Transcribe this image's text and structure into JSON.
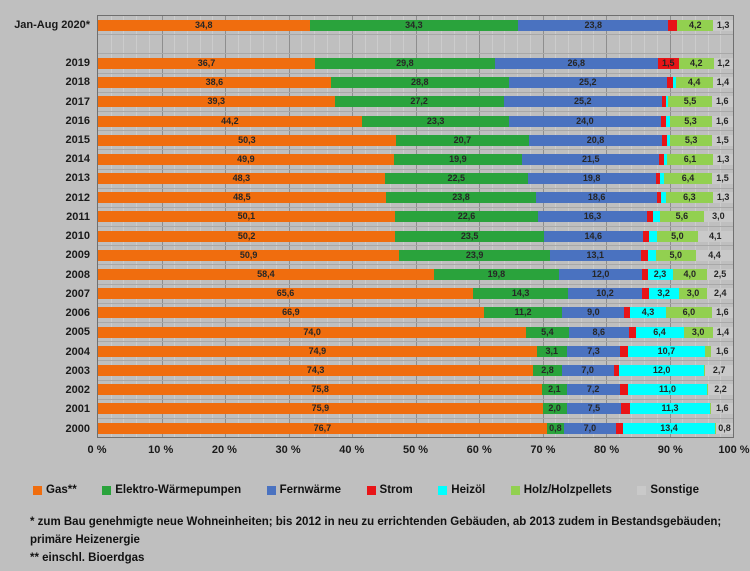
{
  "chart_data": {
    "type": "bar",
    "variant": "horizontal-stacked-100",
    "title": "",
    "xlabel": "",
    "ylabel": "",
    "xlim": [
      0,
      100
    ],
    "grid": {
      "minor_step_pct": 2,
      "major_step_pct": 10,
      "horizontal_row_lines": true
    },
    "legend_position": "bottom",
    "x_ticks": [
      "0 %",
      "10 %",
      "20 %",
      "30 %",
      "40 %",
      "50 %",
      "60 %",
      "70 %",
      "80 %",
      "90 %",
      "100 %"
    ],
    "series": [
      {
        "name": "Gas**",
        "color": "#f06d0e"
      },
      {
        "name": "Elektro-Wärmepumpen",
        "color": "#2aa33c"
      },
      {
        "name": "Fernwärme",
        "color": "#4a72c0"
      },
      {
        "name": "Strom",
        "color": "#e81417"
      },
      {
        "name": "Heizöl",
        "color": "#00ffff"
      },
      {
        "name": "Holz/Holzpellets",
        "color": "#92d050"
      },
      {
        "name": "Sonstige",
        "color": "#c9c9c9"
      }
    ],
    "spacer_after_row": 0,
    "rows": [
      {
        "year": "Jan-Aug 2020*",
        "values": [
          34.8,
          34.3,
          23.8,
          1.5,
          0.1,
          4.2,
          1.3
        ],
        "labels": [
          "34,8",
          "34,3",
          "23,8",
          "",
          "",
          "4,2",
          "1,3"
        ]
      },
      {
        "year": "2019",
        "values": [
          36.7,
          29.8,
          26.8,
          1.5,
          0.0,
          4.2,
          1.2
        ],
        "labels": [
          "36,7",
          "29,8",
          "26,8",
          "1,5",
          "",
          "4,2",
          "1,2"
        ]
      },
      {
        "year": "2018",
        "values": [
          38.6,
          28.8,
          25.2,
          1.2,
          0.4,
          4.4,
          1.4
        ],
        "labels": [
          "38,6",
          "28,8",
          "25,2",
          "",
          "",
          "4,4",
          "1,4"
        ]
      },
      {
        "year": "2017",
        "values": [
          39.3,
          27.2,
          25.2,
          0.7,
          0.5,
          5.5,
          1.6
        ],
        "labels": [
          "39,3",
          "27,2",
          "25,2",
          "",
          "",
          "5,5",
          "1,6"
        ]
      },
      {
        "year": "2016",
        "values": [
          44.2,
          23.3,
          24.0,
          1.0,
          0.6,
          5.3,
          1.6
        ],
        "labels": [
          "44,2",
          "23,3",
          "24,0",
          "",
          "",
          "5,3",
          "1,6"
        ]
      },
      {
        "year": "2015",
        "values": [
          50.3,
          20.7,
          20.8,
          0.9,
          0.5,
          5.3,
          1.5
        ],
        "labels": [
          "50,3",
          "20,7",
          "20,8",
          "",
          "",
          "5,3",
          "1,5"
        ]
      },
      {
        "year": "2014",
        "values": [
          49.9,
          19.9,
          21.5,
          0.8,
          0.5,
          6.1,
          1.3
        ],
        "labels": [
          "49,9",
          "19,9",
          "21,5",
          "",
          "",
          "6,1",
          "1,3"
        ]
      },
      {
        "year": "2013",
        "values": [
          48.3,
          22.5,
          19.8,
          0.8,
          0.7,
          6.4,
          1.5
        ],
        "labels": [
          "48,3",
          "22,5",
          "19,8",
          "",
          "",
          "6,4",
          "1,5"
        ]
      },
      {
        "year": "2012",
        "values": [
          48.5,
          23.8,
          18.6,
          0.7,
          0.8,
          6.3,
          1.3
        ],
        "labels": [
          "48,5",
          "23,8",
          "18,6",
          "",
          "",
          "6,3",
          "1,3"
        ]
      },
      {
        "year": "2011",
        "values": [
          50.1,
          22.6,
          16.3,
          1.2,
          1.2,
          5.6,
          3.0
        ],
        "labels": [
          "50,1",
          "22,6",
          "16,3",
          "",
          "",
          "5,6",
          "3,0"
        ]
      },
      {
        "year": "2010",
        "values": [
          50.2,
          23.5,
          14.6,
          1.2,
          1.4,
          5.0,
          4.1
        ],
        "labels": [
          "50,2",
          "23,5",
          "14,6",
          "",
          "",
          "5,0",
          "4,1"
        ]
      },
      {
        "year": "2009",
        "values": [
          50.9,
          23.9,
          13.1,
          1.3,
          1.4,
          5.0,
          4.4
        ],
        "labels": [
          "50,9",
          "23,9",
          "13,1",
          "",
          "",
          "5,0",
          "4,4"
        ]
      },
      {
        "year": "2008",
        "values": [
          58.4,
          19.8,
          12.0,
          1.0,
          2.3,
          4.0,
          2.5
        ],
        "labels": [
          "58,4",
          "19,8",
          "12,0",
          "",
          "2,3",
          "4,0",
          "2,5"
        ]
      },
      {
        "year": "2007",
        "values": [
          65.6,
          14.3,
          10.2,
          1.3,
          3.2,
          3.0,
          2.4
        ],
        "labels": [
          "65,6",
          "14,3",
          "10,2",
          "",
          "3,2",
          "3,0",
          "2,4"
        ]
      },
      {
        "year": "2006",
        "values": [
          66.9,
          11.2,
          9.0,
          1.0,
          4.3,
          6.0,
          1.6
        ],
        "labels": [
          "66,9",
          "11,2",
          "9,0",
          "",
          "4,3",
          "6,0",
          "1,6"
        ]
      },
      {
        "year": "2005",
        "values": [
          74.0,
          5.4,
          8.6,
          1.2,
          6.4,
          3.0,
          1.4
        ],
        "labels": [
          "74,0",
          "5,4",
          "8,6",
          "",
          "6,4",
          "3,0",
          "1,4"
        ]
      },
      {
        "year": "2004",
        "values": [
          74.9,
          3.1,
          7.3,
          1.3,
          10.7,
          1.1,
          1.6
        ],
        "labels": [
          "74,9",
          "3,1",
          "7,3",
          "",
          "10,7",
          "",
          "1,6"
        ]
      },
      {
        "year": "2003",
        "values": [
          74.3,
          2.8,
          7.0,
          1.0,
          12.0,
          0.2,
          2.7
        ],
        "labels": [
          "74,3",
          "2,8",
          "7,0",
          "",
          "12,0",
          "",
          "2,7"
        ]
      },
      {
        "year": "2002",
        "values": [
          75.8,
          2.1,
          7.2,
          1.5,
          11.0,
          0.2,
          2.2
        ],
        "labels": [
          "75,8",
          "2,1",
          "7,2",
          "",
          "11,0",
          "",
          "2,2"
        ]
      },
      {
        "year": "2001",
        "values": [
          75.9,
          2.0,
          7.5,
          1.5,
          11.3,
          0.2,
          1.6
        ],
        "labels": [
          "75,9",
          "2,0",
          "7,5",
          "",
          "11,3",
          "",
          "1,6"
        ]
      },
      {
        "year": "2000",
        "values": [
          76.7,
          0.8,
          7.0,
          1.2,
          13.4,
          0.1,
          0.8
        ],
        "labels": [
          "76,7",
          "0,8",
          "7,0",
          "",
          "13,4",
          "",
          "0,8"
        ]
      }
    ]
  },
  "footnotes": {
    "line1": "* zum Bau genehmigte neue Wohneinheiten; bis 2012 in neu zu errichtenden Gebäuden, ab 2013 zudem in Bestandsgebäuden; primäre Heizenergie",
    "line2": "** einschl. Bioerdgas"
  },
  "colors": {
    "background": "#bfbfbf",
    "plot_border": "#6f6f6f",
    "grid_minor": "#cccccc",
    "grid_major": "#8e8e8e",
    "row_line": "#a8a8a8",
    "text": "#1a1a1a"
  }
}
